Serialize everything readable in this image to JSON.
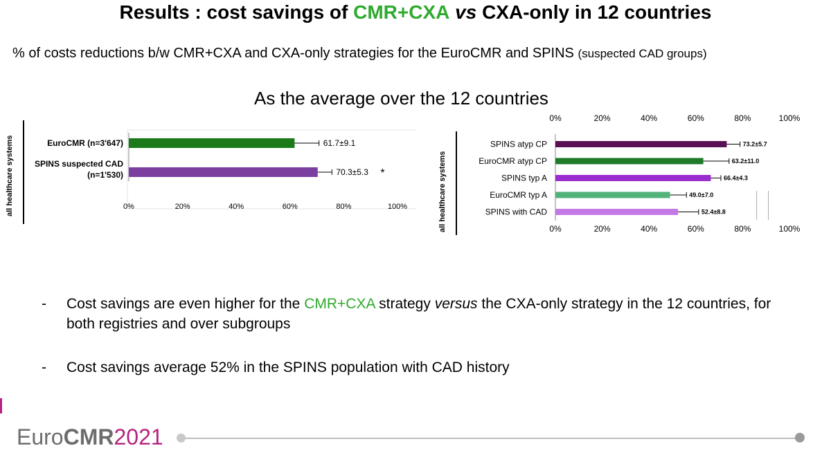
{
  "slide": {
    "title_pre": "Results : cost savings of ",
    "title_green": "CMR+CXA",
    "title_vs": " vs ",
    "title_post": "CXA-only in 12 countries",
    "subtitle_main": "% of costs reductions b/w CMR+CXA and CXA-only strategies for the EuroCMR and SPINS ",
    "subtitle_small": "(suspected CAD groups)",
    "average_heading": "As the average over the 12 countries",
    "bullet1_pre": "Cost savings are even higher for the ",
    "bullet1_green": "CMR+CXA",
    "bullet1_mid": " strategy ",
    "bullet1_italic": "versus",
    "bullet1_post": " the CXA-only strategy in the 12 countries, for both registries and over subgroups",
    "bullet2": "Cost savings average 52% in the SPINS population with CAD history",
    "dash": "-",
    "footer_euro": "Euro",
    "footer_cmr": "CMR",
    "footer_year": "2021",
    "colors": {
      "accent_green": "#2eaa2e",
      "brand_magenta": "#b5227f"
    }
  },
  "chart_data": [
    {
      "type": "bar",
      "orientation": "horizontal",
      "ylabel": "all healthcare systems",
      "categories": [
        "EuroCMR (n=3'647)",
        "SPINS suspected CAD (n=1'530)"
      ],
      "category_lines": [
        [
          "EuroCMR (n=3'647)"
        ],
        [
          "SPINS suspected CAD",
          "(n=1'530)"
        ]
      ],
      "values": [
        61.7,
        70.3
      ],
      "errors": [
        9.1,
        5.3
      ],
      "data_labels": [
        "61.7±9.1",
        "70.3±5.3"
      ],
      "annotations": [
        "",
        "*"
      ],
      "colors": [
        "#1a7a1a",
        "#7b3fa0"
      ],
      "xlim": [
        0,
        100
      ],
      "xticks": [
        "0%",
        "20%",
        "40%",
        "60%",
        "80%",
        "100%"
      ],
      "grid": false
    },
    {
      "type": "bar",
      "orientation": "horizontal",
      "ylabel": "all healthcare systems",
      "categories": [
        "SPINS atyp CP",
        "EuroCMR atyp CP",
        "SPINS typ A",
        "EuroCMR typ A",
        "SPINS with CAD"
      ],
      "values": [
        73.2,
        63.2,
        66.4,
        49.0,
        52.4
      ],
      "errors": [
        5.7,
        11.0,
        4.3,
        7.0,
        8.8
      ],
      "data_labels": [
        "73.2±5.7",
        "63.2±11.0",
        "66.4±4.3",
        "49.0±7.0",
        "52.4±8.8"
      ],
      "colors": [
        "#5a1055",
        "#1f7a2a",
        "#9a2dd0",
        "#52b37a",
        "#c47ae6"
      ],
      "xlim": [
        0,
        100
      ],
      "xticks": [
        "0%",
        "20%",
        "40%",
        "60%",
        "80%",
        "100%"
      ],
      "grid": false
    }
  ]
}
